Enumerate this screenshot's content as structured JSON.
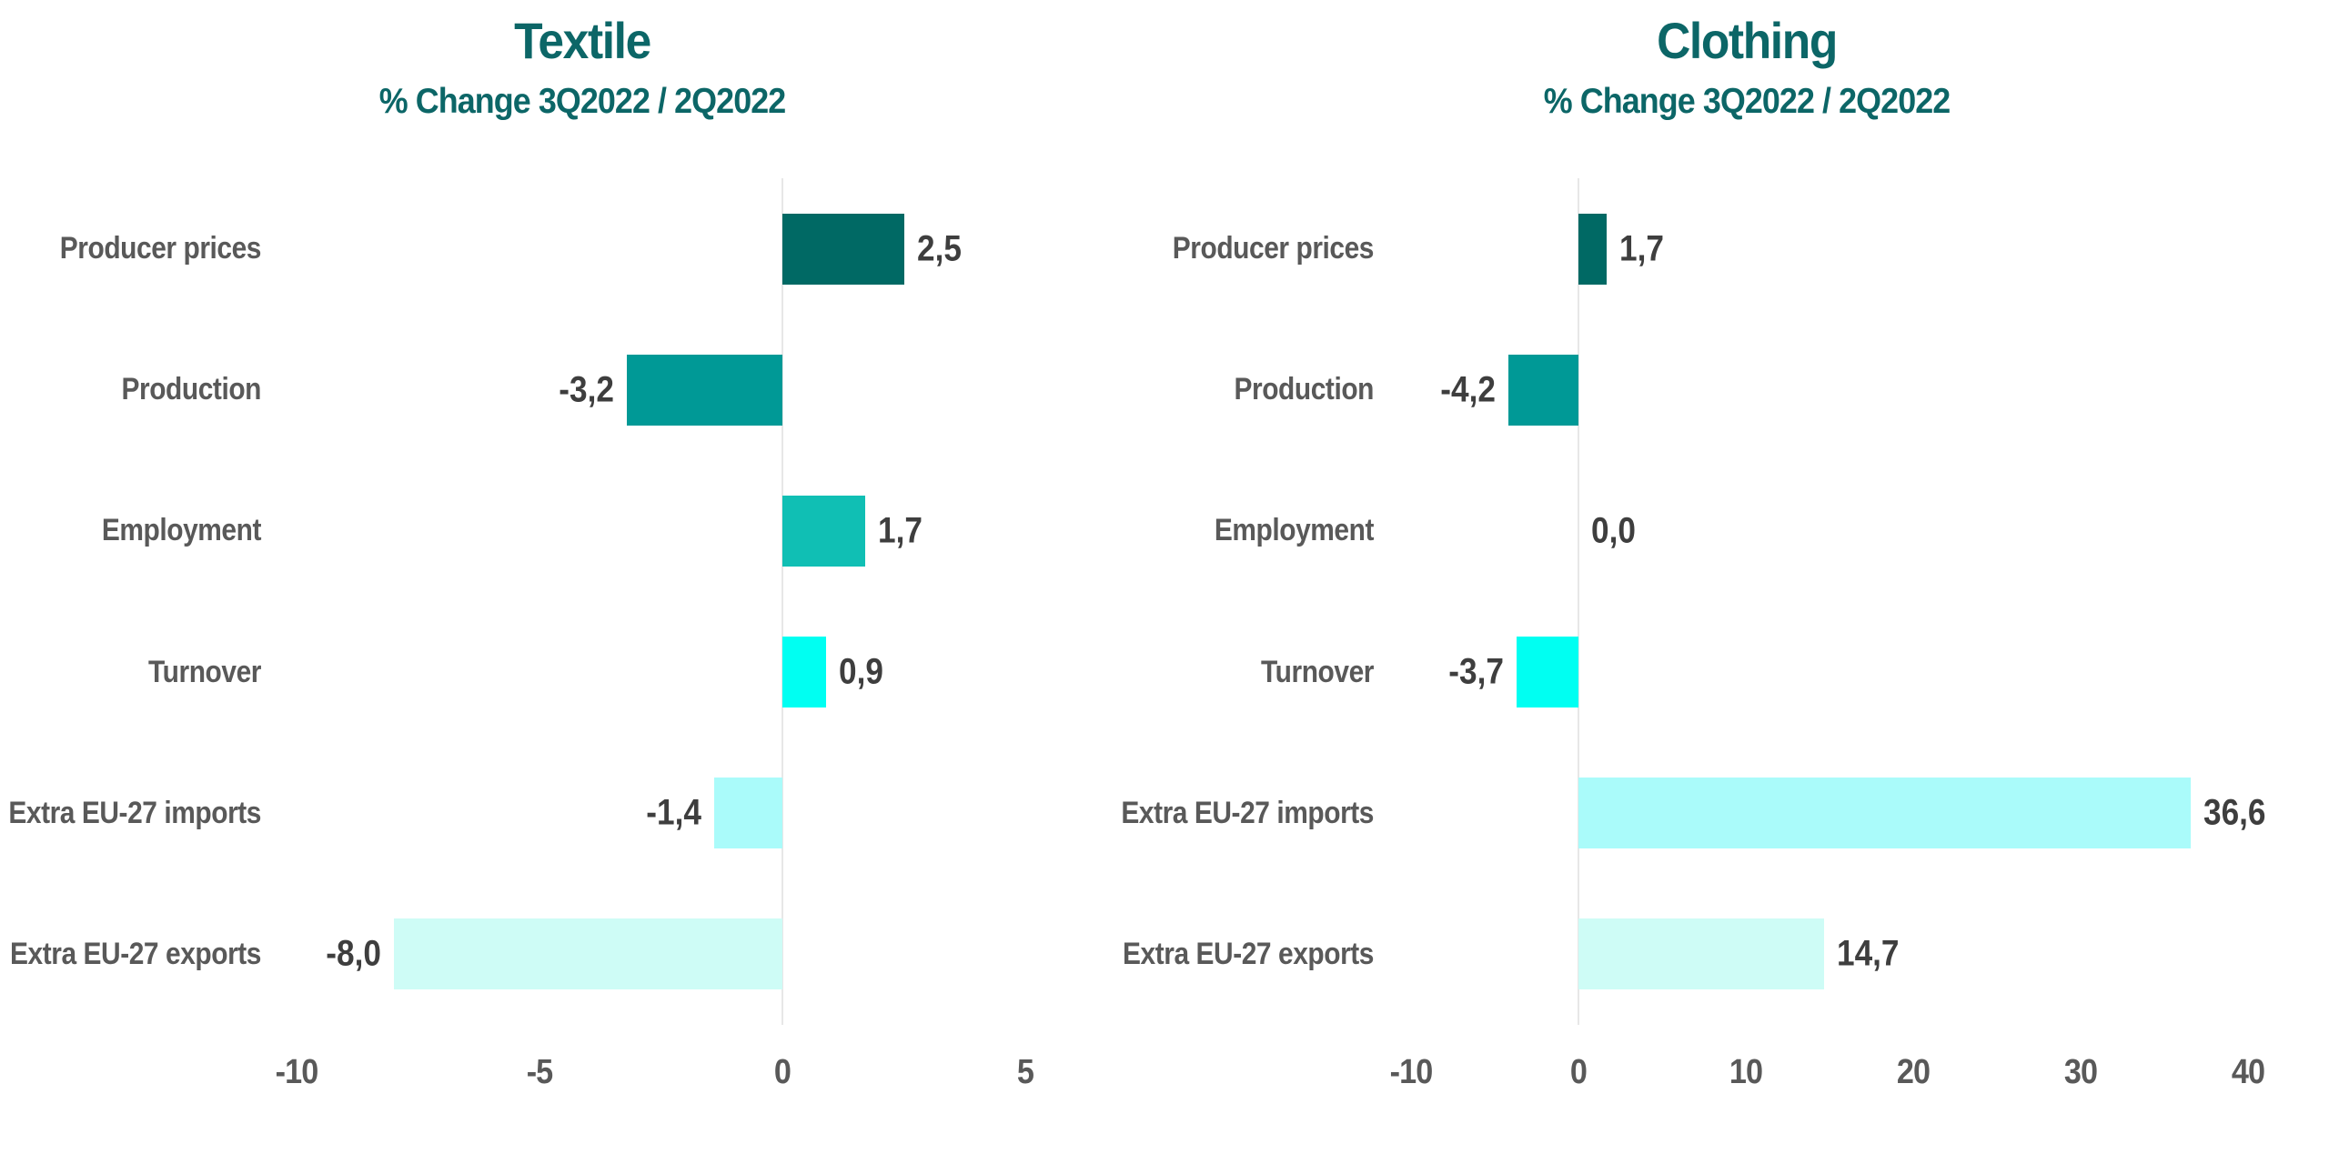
{
  "chart_data": [
    {
      "type": "bar",
      "orientation": "horizontal",
      "title": "Textile",
      "subtitle": "% Change 3Q2022 / 2Q2022",
      "categories": [
        "Producer prices",
        "Production",
        "Employment",
        "Turnover",
        "Extra EU-27 imports",
        "Extra EU-27 exports"
      ],
      "values": [
        2.5,
        -3.2,
        1.7,
        0.9,
        -1.4,
        -8.0
      ],
      "value_labels": [
        "2,5",
        "-3,2",
        "1,7",
        "0,9",
        "-1,4",
        "-8,0"
      ],
      "xlim": [
        -12.5,
        7.5
      ],
      "xticks": [
        -10,
        -5,
        0,
        5
      ],
      "xtick_labels": [
        "-10",
        "-5",
        "0",
        "5"
      ],
      "grid": false,
      "legend": false
    },
    {
      "type": "bar",
      "orientation": "horizontal",
      "title": "Clothing",
      "subtitle": "% Change 3Q2022 / 2Q2022",
      "categories": [
        "Producer prices",
        "Production",
        "Employment",
        "Turnover",
        "Extra EU-27 imports",
        "Extra EU-27 exports"
      ],
      "values": [
        1.7,
        -4.2,
        0.0,
        -3.7,
        36.6,
        14.7
      ],
      "value_labels": [
        "1,7",
        "-4,2",
        "0,0",
        "-3,7",
        "36,6",
        "14,7"
      ],
      "xlim": [
        -14,
        44
      ],
      "xticks": [
        -10,
        0,
        10,
        20,
        30,
        40
      ],
      "xtick_labels": [
        "-10",
        "0",
        "10",
        "20",
        "30",
        "40"
      ],
      "grid": false,
      "legend": false
    }
  ],
  "palette": {
    "bar_colors": [
      "#006964",
      "#009996",
      "#10bfb4",
      "#00fff2",
      "#aafbfa",
      "#cefcf6"
    ],
    "title_color": "#0c6667",
    "category_label_color": "#595959",
    "value_label_color": "#3e3e3e",
    "tick_label_color": "#595959",
    "zero_line_color": "#e7e7e7",
    "background": "#ffffff"
  }
}
